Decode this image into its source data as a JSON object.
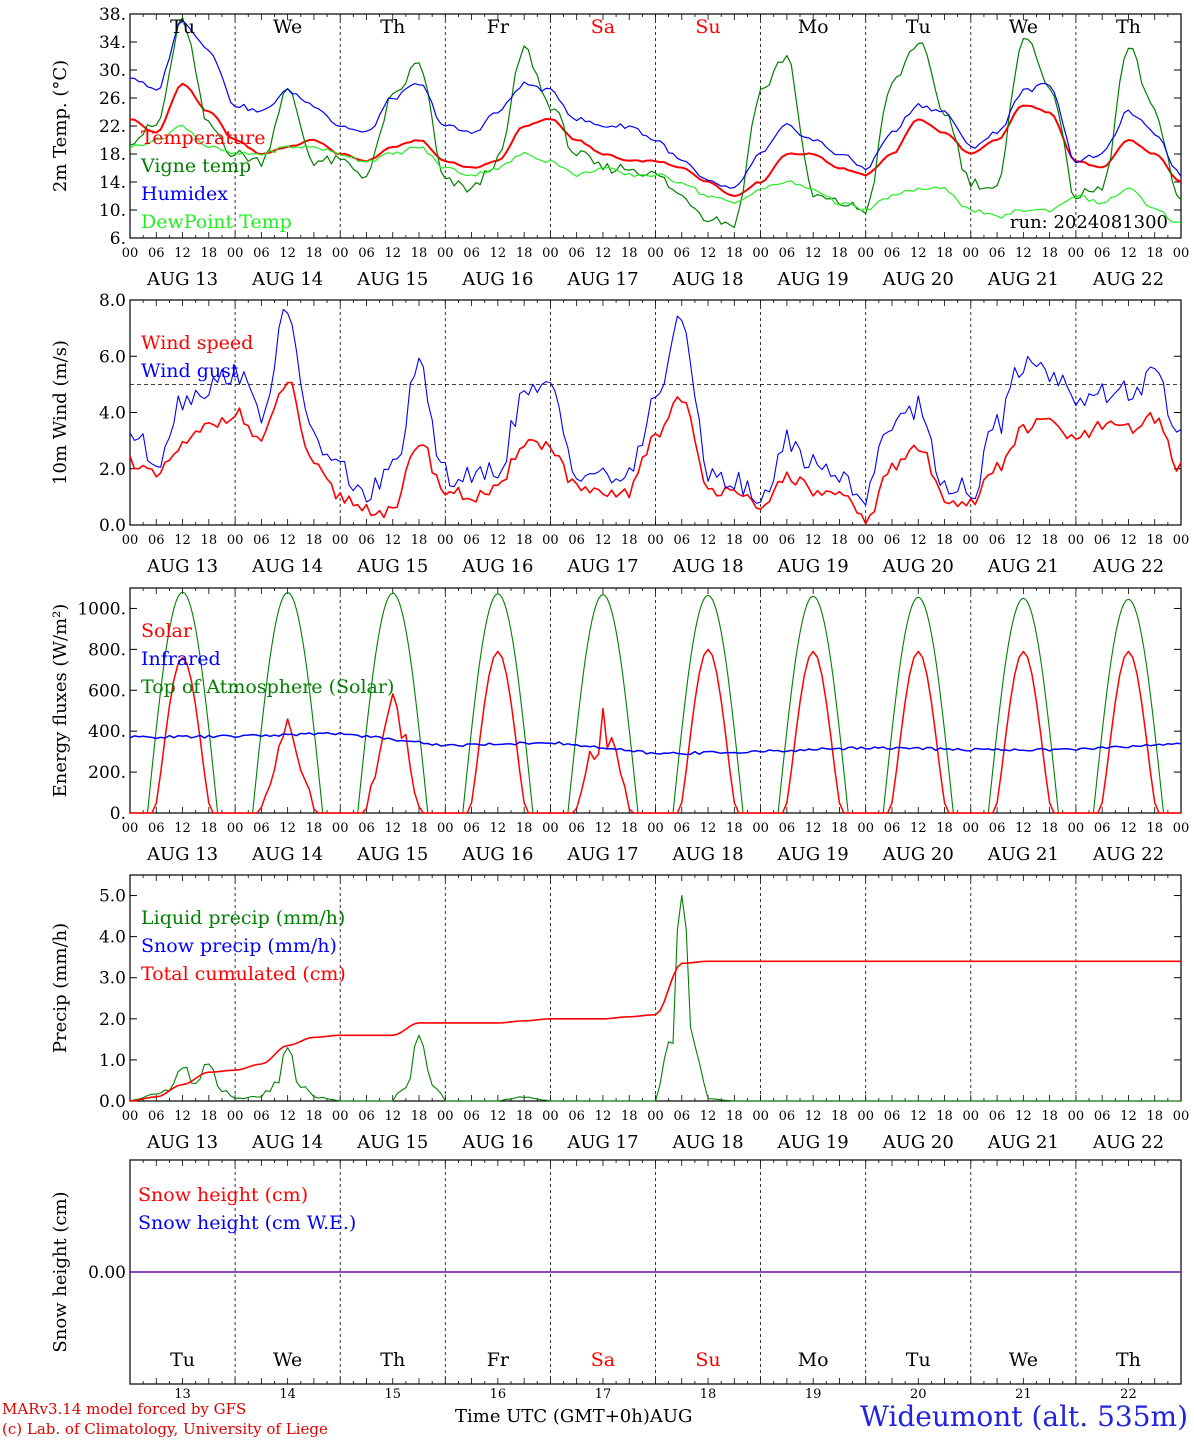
{
  "colors": {
    "red": "#ff0000",
    "blue": "#0000ff",
    "green": "#008000",
    "lightgreen": "#22ee22",
    "purple": "#800080"
  },
  "days": {
    "names": [
      "Tu",
      "We",
      "Th",
      "Fr",
      "Sa",
      "Su",
      "Mo",
      "Tu",
      "We",
      "Th"
    ],
    "weekend": [
      false,
      false,
      false,
      false,
      true,
      true,
      false,
      false,
      false,
      false
    ],
    "dates": [
      "AUG 13",
      "AUG 14",
      "AUG 15",
      "AUG 16",
      "AUG 17",
      "AUG 18",
      "AUG 19",
      "AUG 20",
      "AUG 21",
      "AUG 22"
    ],
    "daynums": [
      "13",
      "14",
      "15",
      "16",
      "17",
      "18",
      "19",
      "20",
      "21",
      "22"
    ]
  },
  "hour_ticks": [
    "00",
    "06",
    "12",
    "18"
  ],
  "footer": {
    "credit1": "MARv3.14 model forced by GFS",
    "credit2": "(c) Lab. of Climatology, University of Liege",
    "x_title": "Time UTC (GMT+0h)AUG",
    "station": "Wideumont (alt. 535m)"
  },
  "chart_data": [
    {
      "id": "temp",
      "type": "line",
      "ylabel": "2m Temp. (°C)",
      "ylim": [
        6,
        38
      ],
      "yticks": [
        "38.",
        "34.",
        "30.",
        "26.",
        "22.",
        "18.",
        "14.",
        "10.",
        "6."
      ],
      "annotation": "run: 2024081300",
      "x_hours_from_start": [
        0,
        6,
        12,
        18,
        24,
        30,
        36,
        42,
        48,
        54,
        60,
        66,
        72,
        78,
        84,
        90,
        96,
        102,
        108,
        114,
        120,
        126,
        132,
        138,
        144,
        150,
        156,
        162,
        168,
        174,
        180,
        186,
        192,
        198,
        204,
        210,
        216,
        222,
        228,
        234,
        240
      ],
      "series": [
        {
          "name": "Temperature",
          "color": "red",
          "values": [
            23,
            21,
            28,
            24,
            20,
            18,
            19,
            20,
            18,
            17,
            19,
            20,
            17,
            16,
            17,
            22,
            23,
            20,
            18,
            17,
            17,
            16,
            14,
            12,
            14,
            18,
            18,
            16,
            15,
            18,
            23,
            21,
            18,
            20,
            25,
            24,
            17,
            16,
            20,
            18,
            14
          ]
        },
        {
          "name": "Vigne temp",
          "color": "green",
          "values": [
            20,
            22,
            37,
            22,
            18,
            17,
            27,
            17,
            17,
            15,
            26,
            31,
            14,
            13,
            17,
            33,
            25,
            18,
            16,
            16,
            15,
            12,
            9,
            8,
            27,
            32,
            12,
            11,
            10,
            28,
            34,
            24,
            14,
            13,
            35,
            28,
            12,
            13,
            33,
            24,
            11
          ]
        },
        {
          "name": "Humidex",
          "color": "blue",
          "values": [
            29,
            27,
            37,
            33,
            25,
            24,
            27,
            25,
            22,
            21,
            26,
            28,
            22,
            21,
            24,
            28,
            27,
            23,
            22,
            22,
            20,
            17,
            14,
            13,
            18,
            22,
            20,
            18,
            16,
            21,
            25,
            24,
            19,
            21,
            27,
            28,
            17,
            18,
            24,
            21,
            15
          ]
        },
        {
          "name": "DewPoint Temp",
          "color": "lightgreen",
          "values": [
            19,
            20,
            22,
            19,
            18,
            18,
            19,
            19,
            18,
            17,
            18,
            19,
            16,
            15,
            16,
            18,
            17,
            15,
            16,
            15,
            15,
            14,
            12,
            11,
            13,
            14,
            13,
            11,
            10,
            12,
            13,
            13,
            10,
            9,
            10,
            10,
            12,
            11,
            13,
            10,
            8
          ]
        }
      ]
    },
    {
      "id": "wind",
      "type": "line",
      "ylabel": "10m Wind (m/s)",
      "ylim": [
        0,
        8
      ],
      "yticks": [
        "8.0",
        "6.0",
        "4.0",
        "2.0",
        "0.0"
      ],
      "reference_line": 5.0,
      "x_hours_from_start": [
        0,
        6,
        12,
        18,
        24,
        30,
        36,
        42,
        48,
        54,
        60,
        66,
        72,
        78,
        84,
        90,
        96,
        102,
        108,
        114,
        120,
        126,
        132,
        138,
        144,
        150,
        156,
        162,
        168,
        174,
        180,
        186,
        192,
        198,
        204,
        210,
        216,
        222,
        228,
        234,
        240
      ],
      "series": [
        {
          "name": "Wind speed",
          "color": "red",
          "values": [
            2.3,
            1.7,
            2.8,
            3.5,
            4.0,
            3.0,
            5.1,
            2.0,
            1.0,
            0.6,
            0.4,
            3.0,
            1.2,
            1.0,
            1.2,
            3.0,
            2.8,
            1.3,
            1.0,
            1.2,
            3.2,
            4.6,
            1.2,
            1.4,
            0.4,
            1.8,
            1.2,
            1.0,
            0.2,
            2.0,
            2.8,
            1.0,
            0.8,
            2.0,
            3.4,
            3.7,
            3.0,
            3.5,
            3.4,
            3.8,
            2.0
          ]
        },
        {
          "name": "Wind gust",
          "color": "blue",
          "values": [
            3.3,
            2.3,
            4.5,
            4.9,
            5.5,
            4.0,
            7.5,
            3.0,
            2.0,
            1.0,
            2.0,
            5.5,
            1.8,
            1.6,
            2.0,
            4.6,
            4.8,
            2.0,
            1.8,
            1.6,
            4.6,
            7.2,
            2.0,
            1.5,
            0.8,
            3.0,
            2.2,
            1.8,
            1.0,
            3.8,
            4.2,
            1.5,
            1.2,
            3.5,
            5.8,
            5.5,
            4.6,
            4.6,
            4.8,
            5.2,
            3.2
          ]
        }
      ]
    },
    {
      "id": "energy",
      "type": "line",
      "ylabel": "Energy fluxes (W/m²)",
      "ylim": [
        0,
        1100
      ],
      "yticks": [
        "1000.",
        "800.",
        "600.",
        "400.",
        "200.",
        "0."
      ],
      "series": [
        {
          "name": "Solar",
          "color": "red",
          "peaks": [
            760,
            480,
            590,
            790,
            520,
            800,
            790,
            790,
            790,
            790
          ]
        },
        {
          "name": "Infrared",
          "color": "blue",
          "day_levels": [
            370,
            375,
            390,
            330,
            345,
            290,
            300,
            320,
            310,
            310,
            340
          ]
        },
        {
          "name": "Top of Atmosphere (Solar)",
          "color": "green",
          "peaks": [
            1080,
            1078,
            1075,
            1072,
            1068,
            1064,
            1060,
            1055,
            1050,
            1045
          ]
        }
      ]
    },
    {
      "id": "precip",
      "type": "line",
      "ylabel": "Precip (mm/h)",
      "ylim": [
        0,
        5.5
      ],
      "yticks": [
        "5.0",
        "4.0",
        "3.0",
        "2.0",
        "1.0",
        "0.0"
      ],
      "x_hours_from_start": [
        0,
        6,
        12,
        18,
        24,
        30,
        36,
        42,
        48,
        54,
        60,
        66,
        72,
        78,
        84,
        90,
        96,
        102,
        108,
        114,
        120,
        126,
        132,
        138,
        144,
        240
      ],
      "series": [
        {
          "name": "Liquid precip (mm/h)",
          "color": "green",
          "values": [
            0.0,
            0.3,
            0.8,
            0.9,
            0.1,
            0.2,
            1.3,
            0.2,
            0.0,
            0.0,
            0.0,
            1.6,
            0.0,
            0.0,
            0.0,
            0.2,
            0.0,
            0.0,
            0.0,
            0.0,
            0.0,
            5.0,
            0.1,
            0.0,
            0.0,
            0.0
          ]
        },
        {
          "name": "Snow precip (mm/h)",
          "color": "blue",
          "values": []
        },
        {
          "name": "Total cumulated (cm)",
          "color": "red",
          "values": [
            0.0,
            0.1,
            0.4,
            0.7,
            0.75,
            0.9,
            1.35,
            1.55,
            1.6,
            1.6,
            1.6,
            1.9,
            1.9,
            1.9,
            1.9,
            1.95,
            2.0,
            2.0,
            2.0,
            2.05,
            2.1,
            3.35,
            3.4,
            3.4,
            3.4,
            3.4
          ]
        }
      ]
    },
    {
      "id": "snow",
      "type": "line",
      "ylabel": "Snow height (cm)",
      "ylim": [
        -1,
        1
      ],
      "yticks": [
        "0.00"
      ],
      "series": [
        {
          "name": "Snow height (cm)",
          "color": "red",
          "values": [
            0,
            0
          ]
        },
        {
          "name": "Snow height (cm W.E.)",
          "color": "blue",
          "values": [
            0,
            0
          ]
        }
      ]
    }
  ]
}
